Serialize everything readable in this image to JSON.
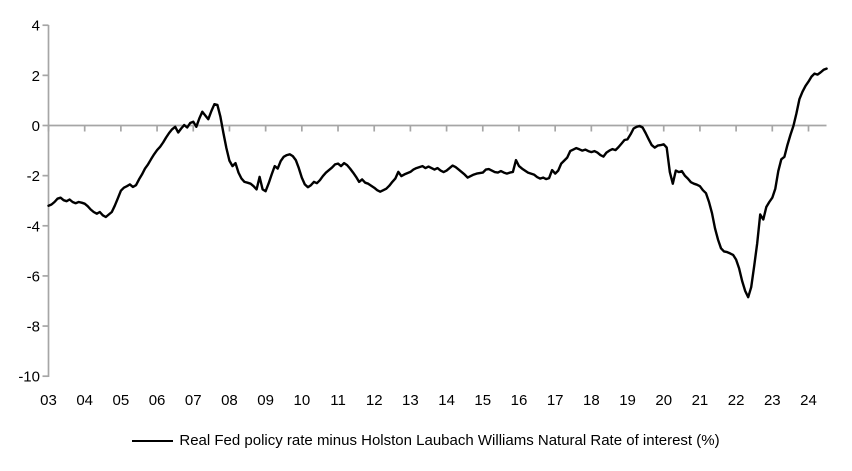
{
  "chart_data": {
    "type": "line",
    "title": "",
    "xlabel": "",
    "ylabel": "",
    "ylim": [
      -10,
      4
    ],
    "y_ticks": [
      4,
      2,
      0,
      -2,
      -4,
      -6,
      -8,
      -10
    ],
    "x_tick_labels": [
      "03",
      "04",
      "05",
      "06",
      "07",
      "08",
      "09",
      "10",
      "11",
      "12",
      "13",
      "14",
      "15",
      "16",
      "17",
      "18",
      "19",
      "20",
      "21",
      "22",
      "23",
      "24"
    ],
    "x_unit": "monthly, Jan 2003 - Jul 2024",
    "grid": "zero-line-only",
    "legend_position": "bottom-center",
    "axis_color": "#a6a6a6",
    "text_color": "#000000",
    "series": [
      {
        "name": "Real Fed policy rate minus Holston Laubach Williams Natural Rate of interest (%)",
        "color": "#000000",
        "values": [
          -3.2,
          -3.15,
          -3.05,
          -2.92,
          -2.88,
          -2.98,
          -3.02,
          -2.95,
          -3.05,
          -3.1,
          -3.05,
          -3.08,
          -3.12,
          -3.22,
          -3.35,
          -3.45,
          -3.52,
          -3.45,
          -3.58,
          -3.65,
          -3.55,
          -3.45,
          -3.2,
          -2.9,
          -2.6,
          -2.48,
          -2.42,
          -2.35,
          -2.45,
          -2.38,
          -2.15,
          -1.95,
          -1.72,
          -1.55,
          -1.35,
          -1.15,
          -0.98,
          -0.85,
          -0.68,
          -0.48,
          -0.3,
          -0.15,
          -0.05,
          -0.28,
          -0.12,
          0.02,
          -0.08,
          0.1,
          0.15,
          -0.05,
          0.28,
          0.55,
          0.4,
          0.25,
          0.58,
          0.85,
          0.82,
          0.35,
          -0.3,
          -0.9,
          -1.4,
          -1.62,
          -1.5,
          -1.88,
          -2.12,
          -2.25,
          -2.28,
          -2.32,
          -2.42,
          -2.55,
          -2.05,
          -2.55,
          -2.62,
          -2.3,
          -1.95,
          -1.62,
          -1.72,
          -1.42,
          -1.25,
          -1.18,
          -1.15,
          -1.22,
          -1.38,
          -1.7,
          -2.08,
          -2.35,
          -2.46,
          -2.38,
          -2.25,
          -2.3,
          -2.18,
          -2.02,
          -1.88,
          -1.78,
          -1.68,
          -1.55,
          -1.52,
          -1.62,
          -1.5,
          -1.58,
          -1.72,
          -1.88,
          -2.05,
          -2.25,
          -2.15,
          -2.28,
          -2.32,
          -2.4,
          -2.48,
          -2.58,
          -2.64,
          -2.58,
          -2.52,
          -2.4,
          -2.25,
          -2.12,
          -1.85,
          -2.02,
          -1.95,
          -1.9,
          -1.85,
          -1.76,
          -1.7,
          -1.66,
          -1.62,
          -1.7,
          -1.64,
          -1.7,
          -1.76,
          -1.7,
          -1.8,
          -1.86,
          -1.8,
          -1.7,
          -1.6,
          -1.66,
          -1.76,
          -1.86,
          -1.96,
          -2.08,
          -2.02,
          -1.96,
          -1.92,
          -1.9,
          -1.88,
          -1.76,
          -1.74,
          -1.8,
          -1.86,
          -1.88,
          -1.82,
          -1.88,
          -1.92,
          -1.88,
          -1.85,
          -1.38,
          -1.62,
          -1.72,
          -1.8,
          -1.88,
          -1.92,
          -1.96,
          -2.06,
          -2.12,
          -2.08,
          -2.14,
          -2.1,
          -1.78,
          -1.92,
          -1.8,
          -1.52,
          -1.4,
          -1.28,
          -1.02,
          -0.96,
          -0.9,
          -0.95,
          -1.0,
          -0.96,
          -1.02,
          -1.06,
          -1.02,
          -1.08,
          -1.18,
          -1.24,
          -1.08,
          -1.0,
          -0.94,
          -0.98,
          -0.86,
          -0.72,
          -0.58,
          -0.55,
          -0.35,
          -0.12,
          -0.05,
          -0.02,
          -0.08,
          -0.3,
          -0.55,
          -0.78,
          -0.88,
          -0.8,
          -0.78,
          -0.75,
          -0.88,
          -1.85,
          -2.32,
          -1.8,
          -1.86,
          -1.82,
          -2.0,
          -2.12,
          -2.26,
          -2.32,
          -2.36,
          -2.42,
          -2.58,
          -2.7,
          -3.05,
          -3.5,
          -4.1,
          -4.55,
          -4.9,
          -5.02,
          -5.05,
          -5.1,
          -5.16,
          -5.35,
          -5.7,
          -6.2,
          -6.6,
          -6.85,
          -6.45,
          -5.6,
          -4.7,
          -3.55,
          -3.75,
          -3.25,
          -3.05,
          -2.88,
          -2.52,
          -1.82,
          -1.35,
          -1.25,
          -0.78,
          -0.38,
          -0.02,
          0.48,
          1.05,
          1.35,
          1.58,
          1.75,
          1.95,
          2.07,
          2.03,
          2.12,
          2.22,
          2.27
        ]
      }
    ]
  }
}
